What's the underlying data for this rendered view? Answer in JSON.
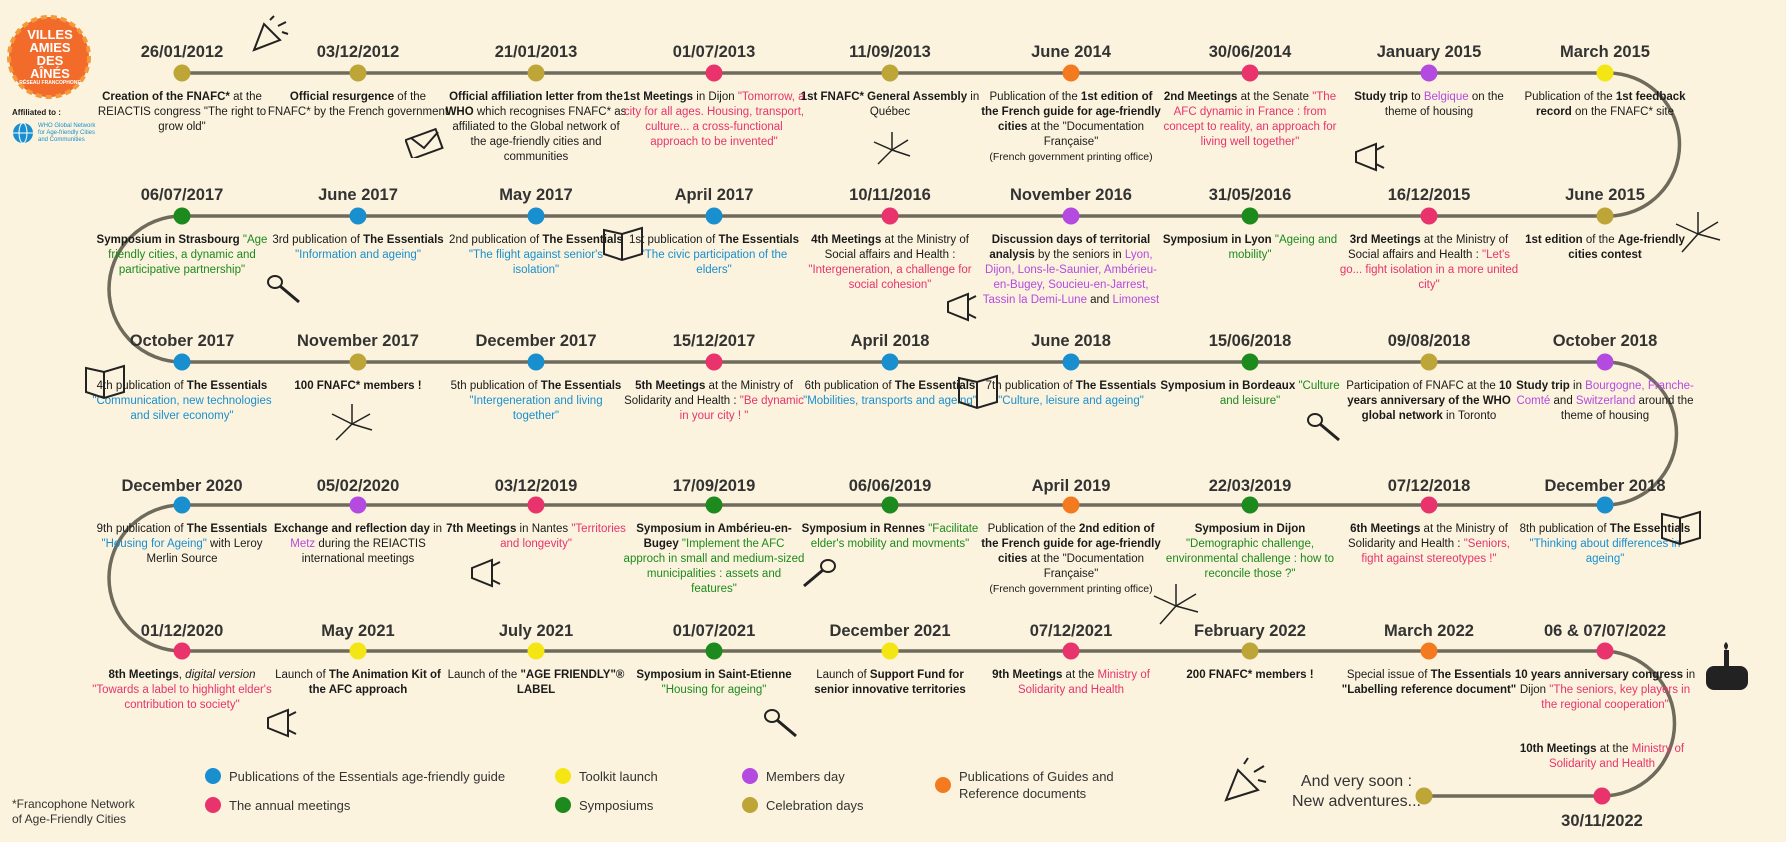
{
  "logo": {
    "lines": [
      "VILLES",
      "AMIES",
      "DES",
      "AÎNÉS"
    ],
    "network_caption": "RÉSEAU FRANCOPHONE"
  },
  "affiliation": {
    "label": "Affiliated to :",
    "who_text": "WHO Global Network for Age-friendly Cities and Communities"
  },
  "colors": {
    "publication": "#1a8fd0",
    "meeting": "#e8336d",
    "toolkit": "#f4e614",
    "symposium": "#1d8a1d",
    "members": "#b44ae0",
    "celebration": "#bea537",
    "guide": "#f47a20"
  },
  "events": [
    {
      "date": "26/01/2012",
      "cat": "celebration",
      "desc": [
        [
          [
            "Creation of the FNAFC*",
            "b"
          ],
          [
            " at the REIACTIS congress ",
            ""
          ],
          [
            "\"The right to grow old\"",
            ""
          ]
        ]
      ]
    },
    {
      "date": "03/12/2012",
      "cat": "celebration",
      "desc": [
        [
          [
            "Official resurgence",
            "b"
          ],
          [
            " of the FNAFC* by the French government",
            ""
          ]
        ]
      ]
    },
    {
      "date": "21/01/2013",
      "cat": "celebration",
      "desc": [
        [
          [
            "Official affiliation letter from the WHO",
            "b"
          ],
          [
            " which recognises FNAFC* as affiliated to the Global network of the age-friendly cities and communities",
            ""
          ]
        ]
      ]
    },
    {
      "date": "01/07/2013",
      "cat": "meeting",
      "desc": [
        [
          [
            "1st Meetings",
            "b"
          ],
          [
            " in Dijon ",
            ""
          ],
          [
            "\"Tomorrow, a city for all ages. Housing, transport, culture... a cross-functional approach to be invented\"",
            "c-pink"
          ]
        ]
      ]
    },
    {
      "date": "11/09/2013",
      "cat": "celebration",
      "desc": [
        [
          [
            "1st FNAFC* General Assembly",
            "b"
          ],
          [
            " in Québec",
            ""
          ]
        ]
      ]
    },
    {
      "date": "June 2014",
      "cat": "guide",
      "desc": [
        [
          [
            "Publication of the ",
            ""
          ],
          [
            "1st edition of the French guide for age-friendly cities",
            "b"
          ],
          [
            " at the \"Documentation Française\"",
            ""
          ]
        ],
        [
          [
            "(French government printing office)",
            "small"
          ]
        ]
      ]
    },
    {
      "date": "30/06/2014",
      "cat": "meeting",
      "desc": [
        [
          [
            "2nd Meetings",
            "b"
          ],
          [
            " at the Senate ",
            ""
          ],
          [
            "\"The AFC dynamic in France : from concept to reality, an approach for living well together\"",
            "c-pink"
          ]
        ]
      ]
    },
    {
      "date": "January 2015",
      "cat": "members",
      "desc": [
        [
          [
            "Study trip",
            "b"
          ],
          [
            " to ",
            ""
          ],
          [
            "Belgique",
            "c-purple"
          ],
          [
            " on the theme of housing",
            ""
          ]
        ]
      ]
    },
    {
      "date": "March 2015",
      "cat": "toolkit",
      "desc": [
        [
          [
            "Publication of the ",
            ""
          ],
          [
            "1st feedback record",
            "b"
          ],
          [
            " on the FNAFC* site",
            ""
          ]
        ]
      ]
    },
    {
      "date": "June 2015",
      "cat": "celebration",
      "desc": [
        [
          [
            "1st edition",
            "b"
          ],
          [
            " of the ",
            ""
          ],
          [
            "Age-friendly cities contest",
            "b"
          ]
        ]
      ]
    },
    {
      "date": "16/12/2015",
      "cat": "meeting",
      "desc": [
        [
          [
            "3rd Meetings",
            "b"
          ],
          [
            " at the Ministry of Social affairs and Health : ",
            ""
          ],
          [
            "\"Let's go... fight isolation in a more united city\"",
            "c-pink"
          ]
        ]
      ]
    },
    {
      "date": "31/05/2016",
      "cat": "symposium",
      "desc": [
        [
          [
            "Symposium in Lyon",
            "b"
          ],
          [
            " ",
            ""
          ],
          [
            "\"Ageing and mobility\"",
            "c-green"
          ]
        ]
      ]
    },
    {
      "date": "November 2016",
      "cat": "members",
      "desc": [
        [
          [
            "Discussion days of territorial analysis",
            "b"
          ],
          [
            " by the seniors in ",
            ""
          ],
          [
            "Lyon, Dijon, Lons-le-Saunier, Ambérieu-en-Bugey, Soucieu-en-Jarrest, Tassin la Demi-Lune",
            "c-purple"
          ],
          [
            " and ",
            ""
          ],
          [
            "Limonest",
            "c-purple"
          ]
        ]
      ]
    },
    {
      "date": "10/11/2016",
      "cat": "meeting",
      "desc": [
        [
          [
            "4th Meetings",
            "b"
          ],
          [
            " at the Ministry of Social affairs and Health : ",
            ""
          ],
          [
            "\"Intergeneration, a challenge for social cohesion\"",
            "c-pink"
          ]
        ]
      ]
    },
    {
      "date": "April 2017",
      "cat": "publication",
      "desc": [
        [
          [
            "1st publication of ",
            ""
          ],
          [
            "The Essentials",
            "b"
          ],
          [
            " ",
            ""
          ],
          [
            "\"The civic participation of the elders\"",
            "c-blue"
          ]
        ]
      ]
    },
    {
      "date": "May 2017",
      "cat": "publication",
      "desc": [
        [
          [
            "2nd publication of ",
            ""
          ],
          [
            "The Essentials",
            "b"
          ],
          [
            " ",
            ""
          ],
          [
            "\"The flight against senior's isolation\"",
            "c-blue"
          ]
        ]
      ]
    },
    {
      "date": "June 2017",
      "cat": "publication",
      "desc": [
        [
          [
            "3rd publication of ",
            ""
          ],
          [
            "The Essentials",
            "b"
          ],
          [
            " ",
            ""
          ],
          [
            "\"Information and ageing\"",
            "c-blue"
          ]
        ]
      ]
    },
    {
      "date": "06/07/2017",
      "cat": "symposium",
      "desc": [
        [
          [
            "Symposium in Strasbourg",
            "b"
          ],
          [
            " ",
            ""
          ],
          [
            "\"Age friendly cities, a dynamic and participative partnership\"",
            "c-green"
          ]
        ]
      ]
    },
    {
      "date": "October 2017",
      "cat": "publication",
      "desc": [
        [
          [
            "4th publication of ",
            ""
          ],
          [
            "The Essentials",
            "b"
          ],
          [
            " ",
            ""
          ],
          [
            "\"Communication, new technologies and silver economy\"",
            "c-blue"
          ]
        ]
      ]
    },
    {
      "date": "November 2017",
      "cat": "celebration",
      "desc": [
        [
          [
            "100 FNAFC* members !",
            "b"
          ]
        ]
      ]
    },
    {
      "date": "December 2017",
      "cat": "publication",
      "desc": [
        [
          [
            "5th publication of ",
            ""
          ],
          [
            "The Essentials",
            "b"
          ],
          [
            " ",
            ""
          ],
          [
            "\"Intergeneration and living together\"",
            "c-blue"
          ]
        ]
      ]
    },
    {
      "date": "15/12/2017",
      "cat": "meeting",
      "desc": [
        [
          [
            "5th Meetings",
            "b"
          ],
          [
            " at the Ministry of Solidarity and Health : ",
            ""
          ],
          [
            "\"Be dynamic in your city ! \"",
            "c-pink"
          ]
        ]
      ]
    },
    {
      "date": "April 2018",
      "cat": "publication",
      "desc": [
        [
          [
            "6th publication of ",
            ""
          ],
          [
            "The Essentials",
            "b"
          ],
          [
            " ",
            ""
          ],
          [
            "\"Mobilities, transports and ageing\"",
            "c-blue"
          ]
        ]
      ]
    },
    {
      "date": "June 2018",
      "cat": "publication",
      "desc": [
        [
          [
            "7th publication of ",
            ""
          ],
          [
            "The Essentials",
            "b"
          ],
          [
            " ",
            ""
          ],
          [
            "\"Culture, leisure and ageing\"",
            "c-blue"
          ]
        ]
      ]
    },
    {
      "date": "15/06/2018",
      "cat": "symposium",
      "desc": [
        [
          [
            "Symposium in Bordeaux",
            "b"
          ],
          [
            " ",
            ""
          ],
          [
            "\"Culture and leisure\"",
            "c-green"
          ]
        ]
      ]
    },
    {
      "date": "09/08/2018",
      "cat": "celebration",
      "desc": [
        [
          [
            "Participation of FNAFC at the ",
            ""
          ],
          [
            "10 years anniversary of the WHO global network",
            "b"
          ],
          [
            " in Toronto",
            ""
          ]
        ]
      ]
    },
    {
      "date": "October 2018",
      "cat": "members",
      "desc": [
        [
          [
            "Study trip",
            "b"
          ],
          [
            " in ",
            ""
          ],
          [
            "Bourgogne, Franche-Comté",
            "c-purple"
          ],
          [
            " and ",
            ""
          ],
          [
            "Switzerland",
            "c-purple"
          ],
          [
            " around the theme of housing",
            ""
          ]
        ]
      ]
    },
    {
      "date": "December 2018",
      "cat": "publication",
      "desc": [
        [
          [
            "8th publication of ",
            ""
          ],
          [
            "The Essentials",
            "b"
          ],
          [
            " ",
            ""
          ],
          [
            "\"Thinking about differences in ageing\"",
            "c-blue"
          ]
        ]
      ]
    },
    {
      "date": "07/12/2018",
      "cat": "meeting",
      "desc": [
        [
          [
            "6th Meetings",
            "b"
          ],
          [
            " at the Ministry of Solidarity and Health : ",
            ""
          ],
          [
            "\"Seniors, fight against stereotypes !\"",
            "c-pink"
          ]
        ]
      ]
    },
    {
      "date": "22/03/2019",
      "cat": "symposium",
      "desc": [
        [
          [
            "Symposium in Dijon",
            "b"
          ],
          [
            " ",
            ""
          ],
          [
            "\"Demographic challenge, environmental challenge : how to reconcile those ?\"",
            "c-green"
          ]
        ]
      ]
    },
    {
      "date": "April 2019",
      "cat": "guide",
      "desc": [
        [
          [
            "Publication of the ",
            ""
          ],
          [
            "2nd edition of the French guide for age-friendly cities",
            "b"
          ],
          [
            " at the \"Documentation Française\"",
            ""
          ]
        ],
        [
          [
            "(French government printing office)",
            "small"
          ]
        ]
      ]
    },
    {
      "date": "06/06/2019",
      "cat": "symposium",
      "desc": [
        [
          [
            "Symposium in Rennes",
            "b"
          ],
          [
            " ",
            ""
          ],
          [
            "\"Facilitate elder's mobility and movments\"",
            "c-green"
          ]
        ]
      ]
    },
    {
      "date": "17/09/2019",
      "cat": "symposium",
      "desc": [
        [
          [
            "Symposium in Ambérieu-en-Bugey",
            "b"
          ],
          [
            " ",
            ""
          ],
          [
            "\"Implement the AFC approch in small and medium-sized municipalities : assets and features\"",
            "c-green"
          ]
        ]
      ]
    },
    {
      "date": "03/12/2019",
      "cat": "meeting",
      "desc": [
        [
          [
            "7th Meetings",
            "b"
          ],
          [
            " in Nantes ",
            ""
          ],
          [
            "\"Territories and longevity\"",
            "c-pink"
          ]
        ]
      ]
    },
    {
      "date": "05/02/2020",
      "cat": "members",
      "desc": [
        [
          [
            "Exchange and reflection day",
            "b"
          ],
          [
            " in ",
            ""
          ],
          [
            "Metz",
            "c-purple"
          ],
          [
            " during the REIACTIS international meetings",
            ""
          ]
        ]
      ]
    },
    {
      "date": "December 2020",
      "cat": "publication",
      "desc": [
        [
          [
            "9th publication of ",
            ""
          ],
          [
            "The Essentials",
            "b"
          ],
          [
            " ",
            ""
          ],
          [
            "\"Housing for Ageing\"",
            "c-blue"
          ],
          [
            " with Leroy Merlin Source",
            ""
          ]
        ]
      ]
    },
    {
      "date": "01/12/2020",
      "cat": "meeting",
      "desc": [
        [
          [
            "8th Meetings",
            "b"
          ],
          [
            ", ",
            ""
          ],
          [
            "digital version",
            "i"
          ],
          [
            " ",
            ""
          ],
          [
            "\"Towards a label to highlight elder's contribution to society\"",
            "c-pink"
          ]
        ]
      ]
    },
    {
      "date": "May 2021",
      "cat": "toolkit",
      "desc": [
        [
          [
            "Launch of ",
            ""
          ],
          [
            "The Animation Kit of the AFC approach",
            "b"
          ]
        ]
      ]
    },
    {
      "date": "July 2021",
      "cat": "toolkit",
      "desc": [
        [
          [
            "Launch of the ",
            ""
          ],
          [
            "\"AGE FRIENDLY\"® LABEL",
            "b"
          ]
        ]
      ]
    },
    {
      "date": "01/07/2021",
      "cat": "symposium",
      "desc": [
        [
          [
            "Symposium in Saint-Etienne",
            "b"
          ],
          [
            " ",
            ""
          ],
          [
            "\"Housing for ageing\"",
            "c-green"
          ]
        ]
      ]
    },
    {
      "date": "December 2021",
      "cat": "toolkit",
      "desc": [
        [
          [
            "Launch of ",
            ""
          ],
          [
            "Support Fund for senior innovative territories",
            "b"
          ]
        ]
      ]
    },
    {
      "date": "07/12/2021",
      "cat": "meeting",
      "desc": [
        [
          [
            "9th Meetings",
            "b"
          ],
          [
            " at the ",
            ""
          ],
          [
            "Ministry of Solidarity and Health",
            "c-pink"
          ]
        ]
      ]
    },
    {
      "date": "February 2022",
      "cat": "celebration",
      "desc": [
        [
          [
            "200 FNAFC* members !",
            "b"
          ]
        ]
      ]
    },
    {
      "date": "March 2022",
      "cat": "guide",
      "desc": [
        [
          [
            "Special issue of ",
            ""
          ],
          [
            "The Essentials",
            "b"
          ],
          [
            " ",
            ""
          ],
          [
            "\"Labelling reference document\"",
            "b"
          ]
        ]
      ]
    },
    {
      "date": "06 & 07/07/2022",
      "cat": "meeting",
      "desc": [
        [
          [
            "10 years anniversary congress",
            "b"
          ],
          [
            " in Dijon ",
            ""
          ],
          [
            "\"The seniors, key players in the regional cooperation\"",
            "c-pink"
          ]
        ]
      ]
    },
    {
      "date": "30/11/2022",
      "cat": "meeting",
      "desc": [
        [
          [
            "10th Meetings",
            "b"
          ],
          [
            " at the ",
            ""
          ],
          [
            "Ministry of Solidarity and Health",
            "c-pink"
          ]
        ]
      ]
    },
    {
      "date": "",
      "cat": "celebration",
      "desc": []
    }
  ],
  "soon": {
    "line1": "And very soon :",
    "line2": "New adventures..."
  },
  "legend": [
    {
      "cat": "publication",
      "label": "Publications of the Essentials age-friendly guide"
    },
    {
      "cat": "meeting",
      "label": "The annual meetings"
    },
    {
      "cat": "toolkit",
      "label": "Toolkit launch"
    },
    {
      "cat": "symposium",
      "label": "Symposiums"
    },
    {
      "cat": "members",
      "label": "Members day"
    },
    {
      "cat": "celebration",
      "label": "Celebration days"
    },
    {
      "cat": "guide",
      "label": "Publications of Guides and Reference documents"
    }
  ],
  "footnote": {
    "line1": "*Francophone Network",
    "line2": "of Age-Friendly Cities"
  }
}
